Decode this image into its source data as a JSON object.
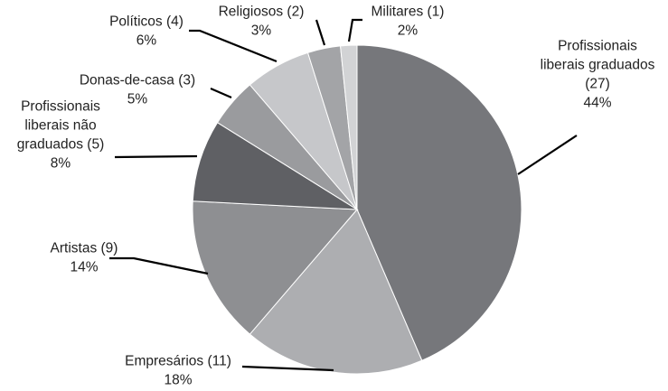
{
  "chart_data": {
    "type": "pie",
    "title": "",
    "slices": [
      {
        "name": "Profissionais liberais graduados",
        "count_label": "(27)",
        "value": 27,
        "percent": 44,
        "percent_label": "44%",
        "label_lines": [
          "Profissionais",
          "liberais graduados",
          "(27)",
          "44%"
        ],
        "color": "#76777b"
      },
      {
        "name": "Empresários",
        "count_label": "(11)",
        "value": 11,
        "percent": 18,
        "percent_label": "18%",
        "label_lines": [
          "Empresários (11)",
          "18%"
        ],
        "color": "#adaeb1"
      },
      {
        "name": "Artistas",
        "count_label": "(9)",
        "value": 9,
        "percent": 14,
        "percent_label": "14%",
        "label_lines": [
          "Artistas (9)",
          "14%"
        ],
        "color": "#8e8f92"
      },
      {
        "name": "Profissionais liberais não graduados",
        "count_label": "(5)",
        "value": 5,
        "percent": 8,
        "percent_label": "8%",
        "label_lines": [
          "Profissionais",
          "liberais não",
          "graduados (5)",
          "8%"
        ],
        "color": "#5f6064"
      },
      {
        "name": "Donas-de-casa",
        "count_label": "(3)",
        "value": 3,
        "percent": 5,
        "percent_label": "5%",
        "label_lines": [
          "Donas-de-casa (3)",
          "5%"
        ],
        "color": "#9a9b9e"
      },
      {
        "name": "Políticos",
        "count_label": "(4)",
        "value": 4,
        "percent": 6,
        "percent_label": "6%",
        "label_lines": [
          "Políticos (4)",
          "6%"
        ],
        "color": "#c6c7ca"
      },
      {
        "name": "Religiosos",
        "count_label": "(2)",
        "value": 2,
        "percent": 3,
        "percent_label": "3%",
        "label_lines": [
          "Religiosos (2)",
          "3%"
        ],
        "color": "#a3a4a7"
      },
      {
        "name": "Militares",
        "count_label": "(1)",
        "value": 1,
        "percent": 2,
        "percent_label": "2%",
        "label_lines": [
          "Militares (1)",
          "2%"
        ],
        "color": "#d2d3d5"
      }
    ],
    "start_angle": "12 o'clock",
    "direction": "clockwise",
    "legend": "none",
    "grid": false
  }
}
